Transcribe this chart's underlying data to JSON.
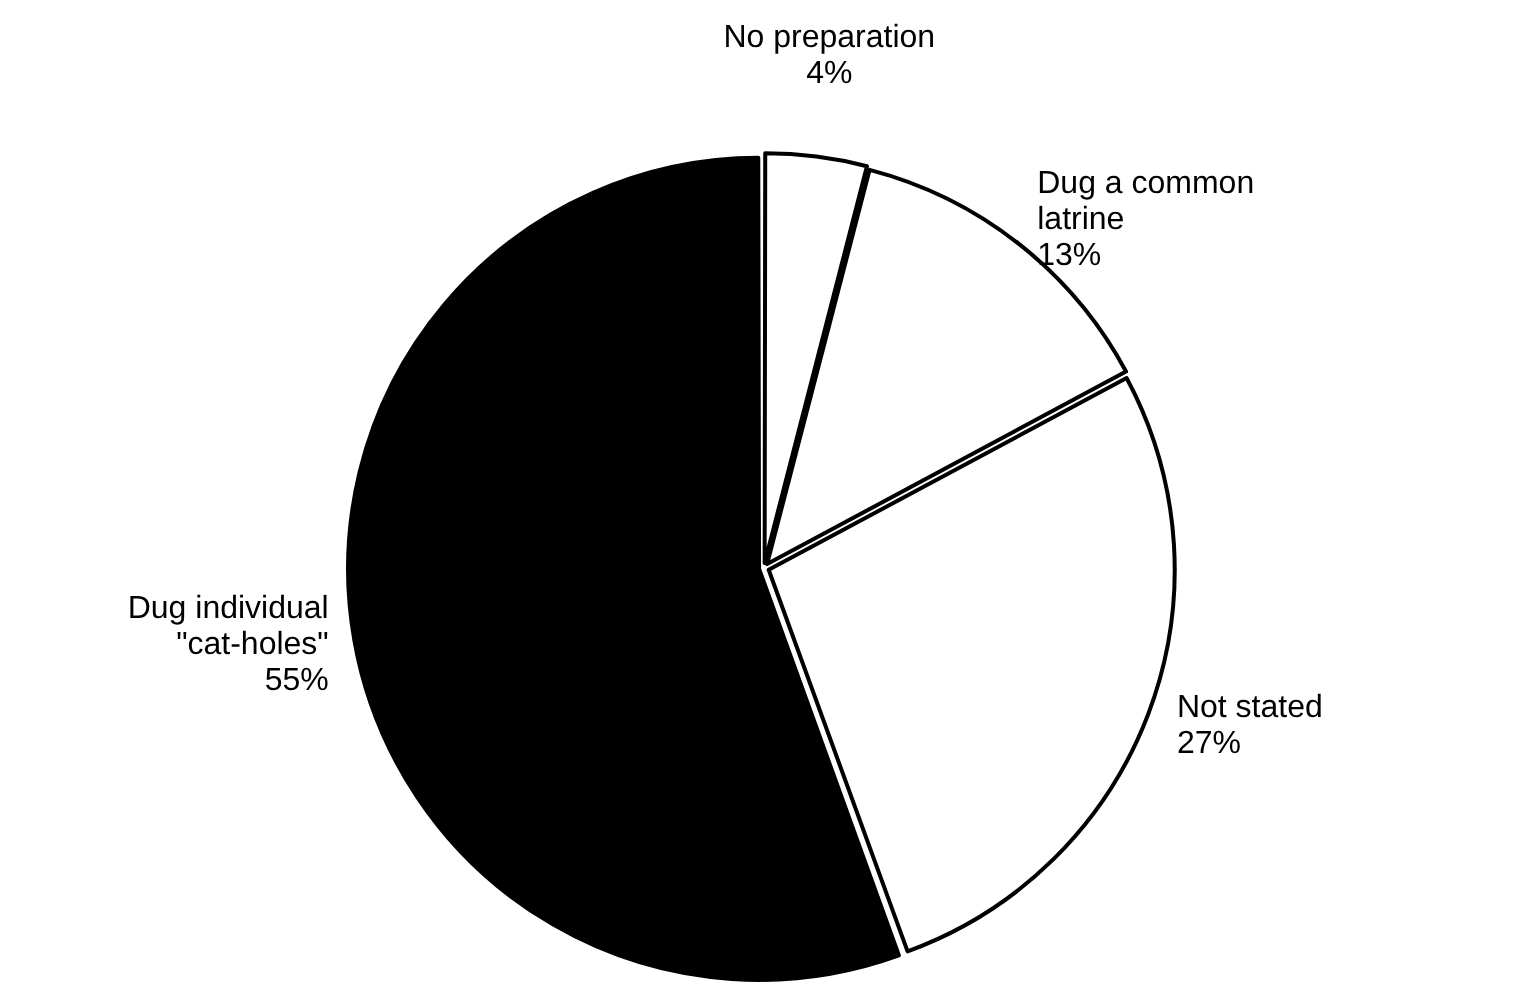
{
  "chart_data": {
    "type": "pie",
    "categories": [
      "No preparation",
      "Dug a common latrine",
      "Not stated",
      "Dug individual \"cat-holes\""
    ],
    "values": [
      4,
      13,
      27,
      55
    ],
    "value_labels": [
      "4%",
      "13%",
      "27%",
      "55%"
    ],
    "colors": [
      "#ffffff",
      "#ffffff",
      "#ffffff",
      "#000000"
    ],
    "legend": false
  }
}
